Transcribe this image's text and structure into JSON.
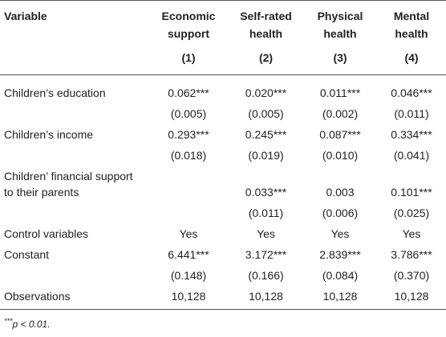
{
  "table": {
    "header": [
      "Variable",
      "Economic support",
      "Self-rated health",
      "Physical health",
      "Mental health"
    ],
    "numbers": [
      "(1)",
      "(2)",
      "(3)",
      "(4)"
    ],
    "rows": [
      [
        "Children’s education",
        "0.062***",
        "0.020***",
        "0.011***",
        "0.046***"
      ],
      [
        null,
        "(0.005)",
        "(0.005)",
        "(0.002)",
        "(0.011)"
      ],
      [
        "Children’s income",
        "0.293***",
        "0.245***",
        "0.087***",
        "0.334***"
      ],
      [
        null,
        "(0.018)",
        "(0.019)",
        "(0.010)",
        "(0.041)"
      ],
      [
        "Children’ financial support to their parents",
        null,
        "0.033***",
        "0.003",
        "0.101***"
      ],
      [
        null,
        null,
        "(0.011)",
        "(0.006)",
        "(0.025)"
      ],
      [
        "Control variables",
        "Yes",
        "Yes",
        "Yes",
        "Yes"
      ],
      [
        "Constant",
        "6.441***",
        "3.172***",
        "2.839***",
        "3.786***"
      ],
      [
        null,
        "(0.148)",
        "(0.166)",
        "(0.084)",
        "(0.370)"
      ],
      [
        "Observations",
        "10,128",
        "10,128",
        "10,128",
        "10,128"
      ]
    ]
  },
  "footnote": {
    "marker": "***",
    "text": "p < 0.01."
  }
}
